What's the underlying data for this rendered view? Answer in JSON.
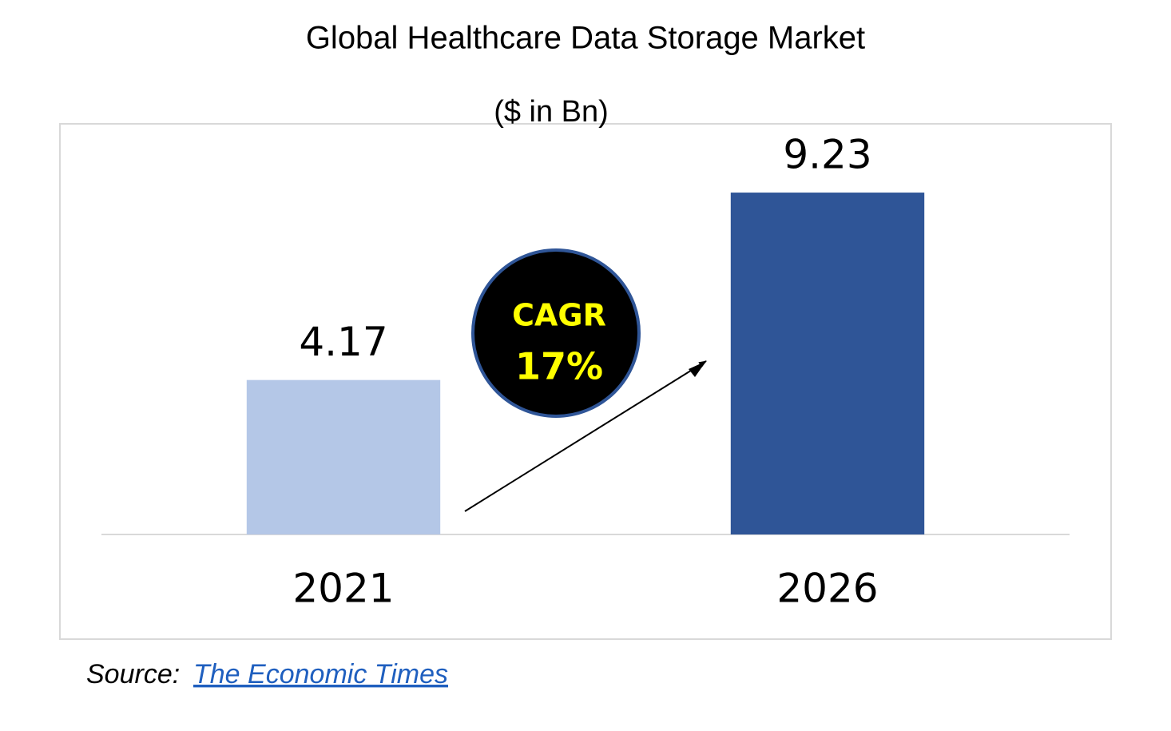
{
  "chart_data": {
    "type": "bar",
    "title": "Global Healthcare Data Storage Market",
    "subtitle": "($ in Bn)",
    "categories": [
      "2021",
      "2026"
    ],
    "values": [
      4.17,
      9.23
    ],
    "colors": [
      "#b4c7e7",
      "#2f5597"
    ],
    "ylim": [
      0,
      11
    ],
    "annotation": {
      "label": "CAGR",
      "value": "17%"
    },
    "source": {
      "label": "Source:",
      "link": "The Economic Times"
    }
  }
}
